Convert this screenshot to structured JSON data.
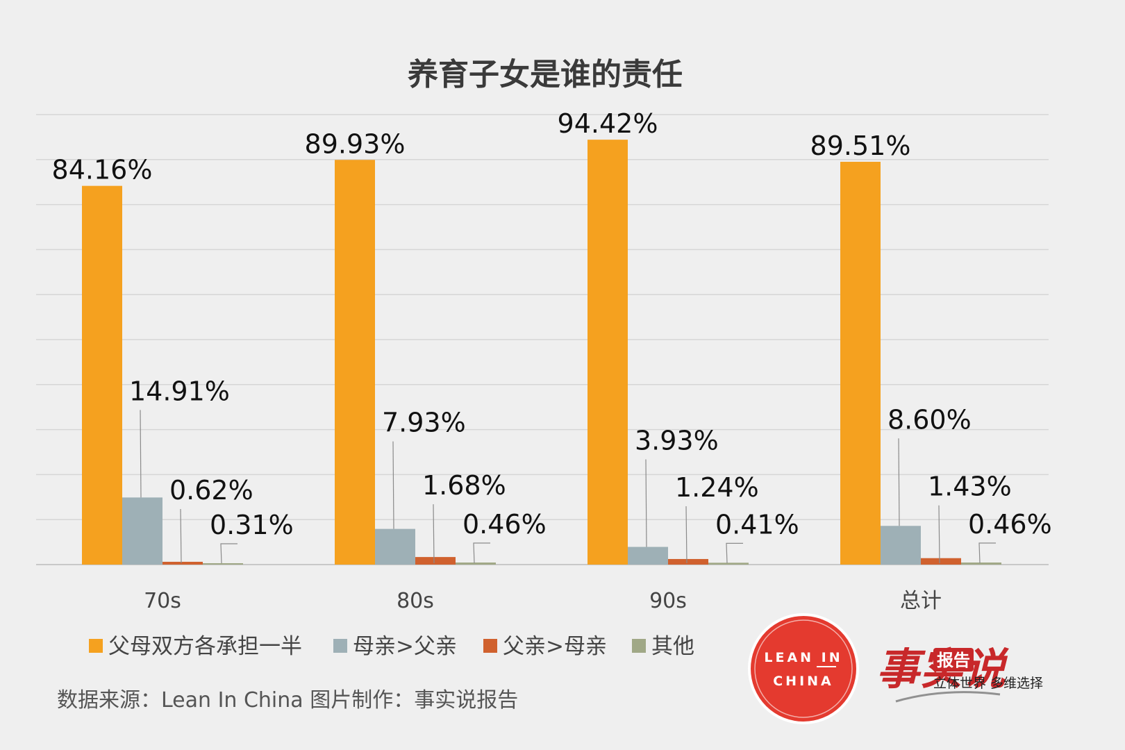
{
  "chart_data": {
    "type": "bar",
    "title": "养育子女是谁的责任",
    "categories": [
      "70s",
      "80s",
      "90s",
      "总计"
    ],
    "ylim": [
      0,
      100
    ],
    "grid": true,
    "legend_position": "bottom-left",
    "series": [
      {
        "name": "父母双方各承担一半",
        "color": "#f5a11f",
        "values": [
          84.16,
          89.93,
          94.42,
          89.51
        ],
        "labels": [
          "84.16%",
          "89.93%",
          "94.42%",
          "89.51%"
        ]
      },
      {
        "name": "母亲>父亲",
        "color": "#9eb0b6",
        "values": [
          14.91,
          7.93,
          3.93,
          8.6
        ],
        "labels": [
          "14.91%",
          "7.93%",
          "3.93%",
          "8.60%"
        ]
      },
      {
        "name": "父亲>母亲",
        "color": "#d0612e",
        "values": [
          0.62,
          1.68,
          1.24,
          1.43
        ],
        "labels": [
          "0.62%",
          "1.68%",
          "1.24%",
          "1.43%"
        ]
      },
      {
        "name": "其他",
        "color": "#a0a886",
        "values": [
          0.31,
          0.46,
          0.41,
          0.46
        ],
        "labels": [
          "0.31%",
          "0.46%",
          "0.41%",
          "0.46%"
        ]
      }
    ]
  },
  "footer": {
    "source": "数据来源：Lean In China  图片制作：事实说报告"
  },
  "logos": {
    "lean_in_line1": "LEAN IN",
    "lean_in_line2": "CHINA",
    "brand_main": "事实说",
    "brand_badge": "报告",
    "brand_slogan": "立体世界 多维选择"
  }
}
